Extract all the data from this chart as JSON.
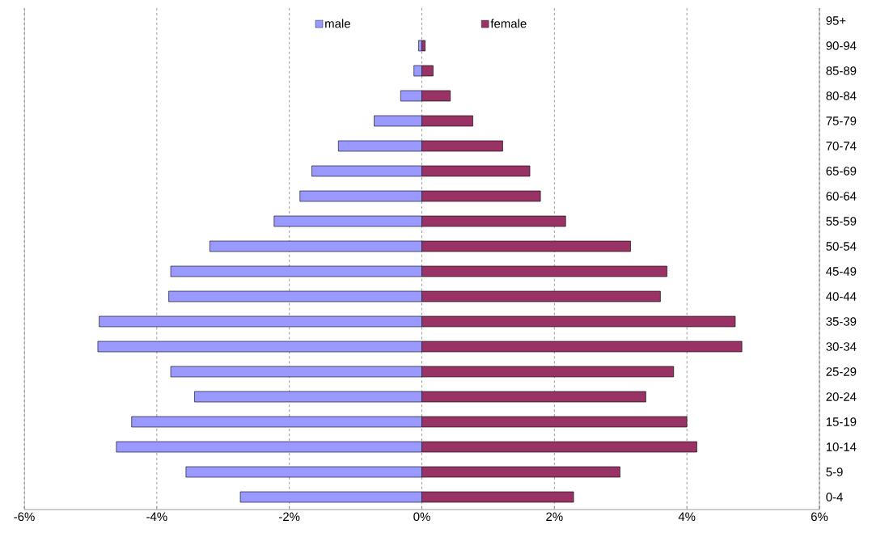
{
  "chart_data": {
    "type": "bar",
    "orientation": "horizontal",
    "categories": [
      "95+",
      "90-94",
      "85-89",
      "80-84",
      "75-79",
      "70-74",
      "65-69",
      "60-64",
      "55-59",
      "50-54",
      "45-49",
      "40-44",
      "35-39",
      "30-34",
      "25-29",
      "20-24",
      "15-19",
      "10-14",
      "5-9",
      "0-4"
    ],
    "series": [
      {
        "name": "male",
        "color": "#9999ff",
        "values": [
          null,
          -0.05,
          -0.12,
          -0.32,
          -0.72,
          -1.26,
          -1.66,
          -1.84,
          -2.23,
          -3.2,
          -3.79,
          -3.82,
          -4.87,
          -4.89,
          -3.79,
          -3.43,
          -4.38,
          -4.61,
          -3.56,
          -2.74
        ]
      },
      {
        "name": "female",
        "color": "#993366",
        "values": [
          null,
          0.05,
          0.17,
          0.43,
          0.77,
          1.22,
          1.63,
          1.79,
          2.17,
          3.15,
          3.7,
          3.6,
          4.73,
          4.83,
          3.8,
          3.38,
          4.0,
          4.15,
          2.99,
          2.29
        ]
      }
    ],
    "xlim": [
      -6,
      6
    ],
    "xticks": [
      {
        "value": -6,
        "label": "-6%"
      },
      {
        "value": -4,
        "label": "-4%"
      },
      {
        "value": -2,
        "label": "-2%"
      },
      {
        "value": 0,
        "label": "0%"
      },
      {
        "value": 2,
        "label": "2%"
      },
      {
        "value": 4,
        "label": "4%"
      },
      {
        "value": 6,
        "label": "6%"
      }
    ],
    "grid": "x",
    "legend": "top",
    "stacked": true
  }
}
